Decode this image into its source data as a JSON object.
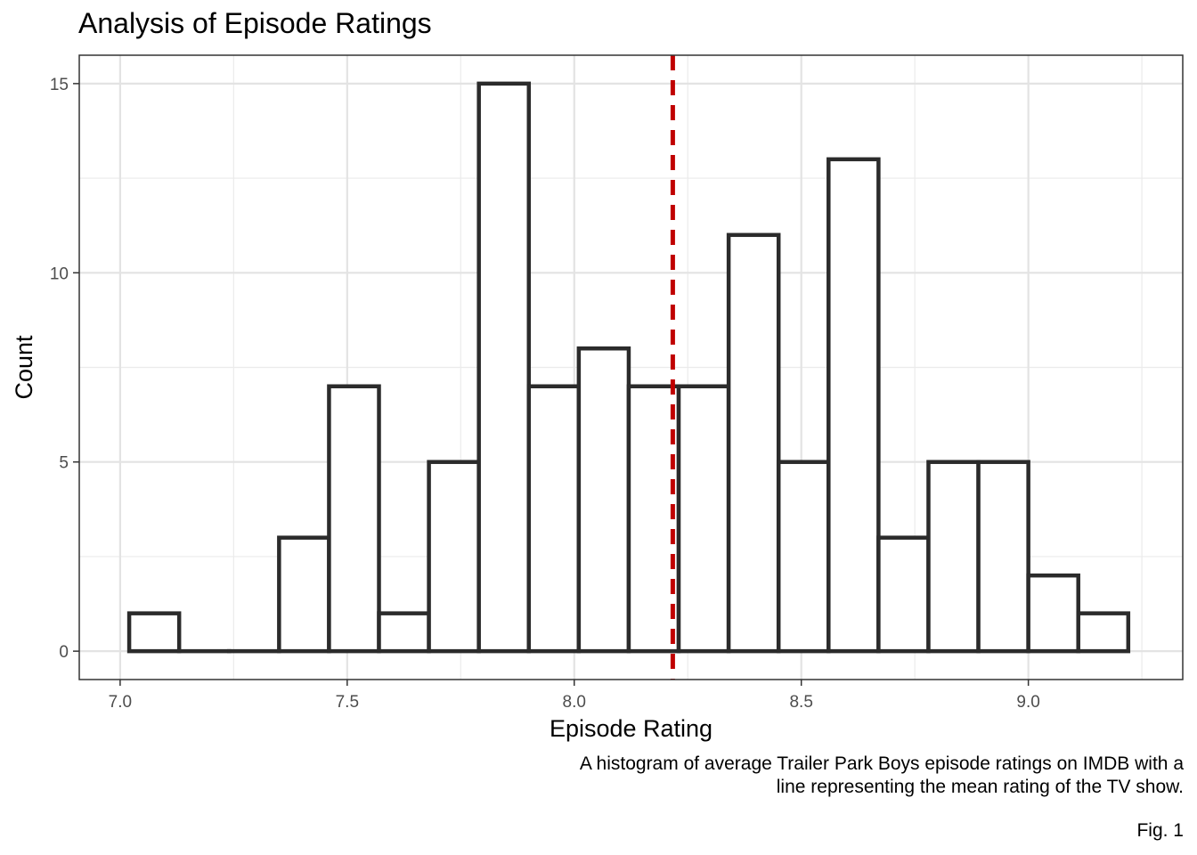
{
  "chart_data": {
    "type": "bar",
    "title": "Analysis of Episode Ratings",
    "xlabel": "Episode Rating",
    "ylabel": "Count",
    "bin_width": 0.11,
    "bins": [
      {
        "x0": 7.02,
        "x1": 7.13,
        "count": 1
      },
      {
        "x0": 7.13,
        "x1": 7.24,
        "count": 0
      },
      {
        "x0": 7.24,
        "x1": 7.35,
        "count": 0
      },
      {
        "x0": 7.35,
        "x1": 7.46,
        "count": 3
      },
      {
        "x0": 7.46,
        "x1": 7.57,
        "count": 7
      },
      {
        "x0": 7.57,
        "x1": 7.68,
        "count": 1
      },
      {
        "x0": 7.68,
        "x1": 7.79,
        "count": 5
      },
      {
        "x0": 7.79,
        "x1": 7.9,
        "count": 15
      },
      {
        "x0": 7.9,
        "x1": 8.01,
        "count": 7
      },
      {
        "x0": 8.01,
        "x1": 8.12,
        "count": 8
      },
      {
        "x0": 8.12,
        "x1": 8.23,
        "count": 7
      },
      {
        "x0": 8.23,
        "x1": 8.34,
        "count": 7
      },
      {
        "x0": 8.34,
        "x1": 8.45,
        "count": 11
      },
      {
        "x0": 8.45,
        "x1": 8.56,
        "count": 5
      },
      {
        "x0": 8.56,
        "x1": 8.67,
        "count": 13
      },
      {
        "x0": 8.67,
        "x1": 8.78,
        "count": 3
      },
      {
        "x0": 8.78,
        "x1": 8.89,
        "count": 5
      },
      {
        "x0": 8.89,
        "x1": 9.0,
        "count": 5
      },
      {
        "x0": 9.0,
        "x1": 9.11,
        "count": 2
      },
      {
        "x0": 9.11,
        "x1": 9.22,
        "count": 1
      }
    ],
    "mean_line": {
      "x": 8.217,
      "color": "#c00000",
      "style": "dashed"
    },
    "xlim": [
      6.91,
      9.34
    ],
    "ylim": [
      -0.75,
      15.75
    ],
    "x_ticks": [
      7.0,
      7.5,
      8.0,
      8.5,
      9.0
    ],
    "x_tick_labels": [
      "7.0",
      "7.5",
      "8.0",
      "8.5",
      "9.0"
    ],
    "y_ticks": [
      0,
      5,
      10,
      15
    ],
    "y_tick_labels": [
      "0",
      "5",
      "10",
      "15"
    ],
    "grid": true,
    "legend": "none",
    "bar_fill": "#ffffff",
    "bar_outline": "#2b2b2b"
  },
  "caption": {
    "text": "A histogram of average Trailer Park Boys episode ratings on IMDB with a line representing the mean rating of the TV show.",
    "figure_label": "Fig. 1"
  }
}
